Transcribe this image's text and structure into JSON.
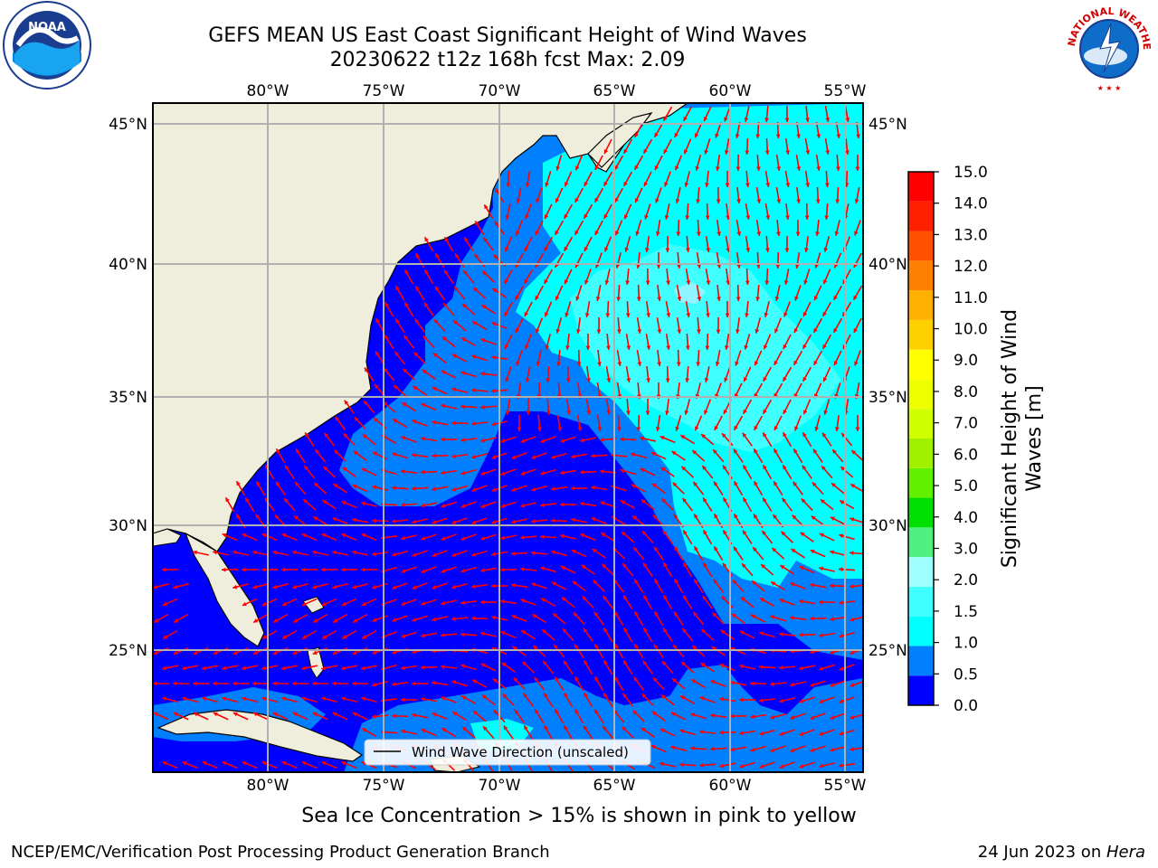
{
  "title": {
    "line1": "GEFS MEAN US East Coast Significant Height of Wind Waves",
    "line2": "20230622 t12z 168h fcst   Max: 2.09"
  },
  "map": {
    "lon_ticks": [
      "80°W",
      "75°W",
      "70°W",
      "65°W",
      "60°W",
      "55°W"
    ],
    "lat_ticks": [
      "45°N",
      "40°N",
      "35°N",
      "30°N",
      "25°N"
    ],
    "lon_range": [
      -85,
      -54.3
    ],
    "lat_range": [
      20.5,
      46
    ],
    "legend_label": "Wind Wave Direction (unscaled)",
    "ocean_colors": {
      "band_0_0.5": "#0000ff",
      "band_0.5_1.0": "#0080ff",
      "band_1.0_1.5": "#00ffff",
      "band_1.5_2.0": "#40ffff"
    },
    "land_color": "#efeedd",
    "arrow_color": "#ff0000"
  },
  "colorbar": {
    "label_line1": "Significant Height of Wind",
    "label_line2": "Waves [m]",
    "ticks": [
      "0.0",
      "0.5",
      "1.0",
      "1.5",
      "2.0",
      "3.0",
      "4.0",
      "5.0",
      "6.0",
      "7.0",
      "8.0",
      "9.0",
      "10.0",
      "11.0",
      "12.0",
      "13.0",
      "14.0",
      "15.0"
    ],
    "colors": [
      "#0000ff",
      "#0080ff",
      "#00ffff",
      "#40ffff",
      "#a0ffff",
      "#50f080",
      "#00e000",
      "#60f000",
      "#a0f000",
      "#d0ff00",
      "#f0ff00",
      "#ffff00",
      "#ffd000",
      "#ffb000",
      "#ff8000",
      "#ff5000",
      "#ff2000",
      "#ff0000"
    ]
  },
  "note": "Sea Ice Concentration > 15% is shown in pink to yellow",
  "footer": {
    "left": "NCEP/EMC/Verification Post Processing Product Generation Branch",
    "date": "24 Jun 2023 on ",
    "host": "Hera"
  },
  "logos": {
    "noaa_text": "NOAA",
    "nws_text": "NATIONAL WEATHER SERVICE"
  }
}
